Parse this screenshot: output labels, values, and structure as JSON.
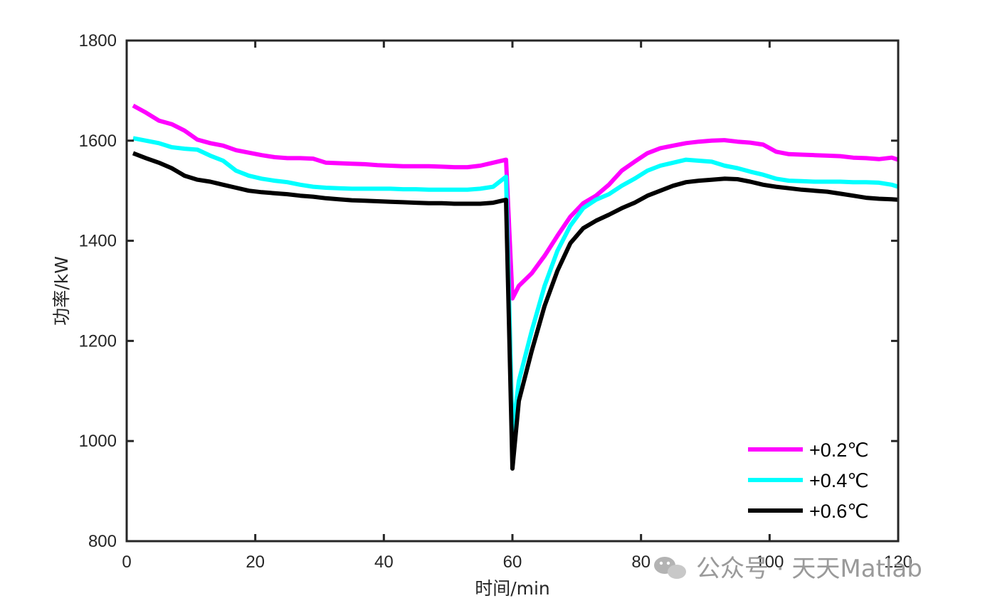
{
  "chart_data": {
    "type": "line",
    "xlabel": "时间/min",
    "ylabel": "功率/kW",
    "xlim": [
      0,
      120
    ],
    "ylim": [
      800,
      1800
    ],
    "xticks": [
      "0",
      "20",
      "40",
      "60",
      "80",
      "100",
      "120"
    ],
    "yticks": [
      "800",
      "1000",
      "1200",
      "1400",
      "1600",
      "1800"
    ],
    "grid": false,
    "legend_position": "bottom-right",
    "series": [
      {
        "name": "+0.2℃",
        "color": "#ff00ff",
        "x": [
          1,
          3,
          5,
          7,
          9,
          11,
          13,
          15,
          17,
          19,
          21,
          23,
          25,
          27,
          29,
          31,
          33,
          35,
          37,
          39,
          41,
          43,
          45,
          47,
          49,
          51,
          53,
          55,
          57,
          59,
          60,
          61,
          63,
          65,
          67,
          69,
          71,
          73,
          75,
          77,
          79,
          81,
          83,
          85,
          87,
          89,
          91,
          93,
          95,
          97,
          99,
          101,
          103,
          105,
          107,
          109,
          111,
          113,
          115,
          117,
          119,
          120
        ],
        "y": [
          1670,
          1656,
          1640,
          1633,
          1620,
          1602,
          1595,
          1590,
          1581,
          1576,
          1571,
          1567,
          1565,
          1565,
          1564,
          1556,
          1555,
          1554,
          1553,
          1551,
          1550,
          1549,
          1549,
          1549,
          1548,
          1547,
          1547,
          1550,
          1556,
          1562,
          1285,
          1310,
          1335,
          1370,
          1410,
          1448,
          1475,
          1490,
          1512,
          1540,
          1558,
          1575,
          1585,
          1590,
          1595,
          1598,
          1600,
          1601,
          1598,
          1596,
          1592,
          1578,
          1573,
          1572,
          1571,
          1570,
          1569,
          1566,
          1565,
          1563,
          1566,
          1562
        ]
      },
      {
        "name": "+0.4℃",
        "color": "#00ffff",
        "x": [
          1,
          3,
          5,
          7,
          9,
          11,
          13,
          15,
          17,
          19,
          21,
          23,
          25,
          27,
          29,
          31,
          33,
          35,
          37,
          39,
          41,
          43,
          45,
          47,
          49,
          51,
          53,
          55,
          57,
          59,
          60,
          61,
          63,
          65,
          67,
          69,
          71,
          73,
          75,
          77,
          79,
          81,
          83,
          85,
          87,
          89,
          91,
          93,
          95,
          97,
          99,
          101,
          103,
          105,
          107,
          109,
          111,
          113,
          115,
          117,
          119,
          120
        ],
        "y": [
          1605,
          1600,
          1595,
          1587,
          1584,
          1582,
          1570,
          1560,
          1540,
          1530,
          1524,
          1520,
          1517,
          1512,
          1508,
          1506,
          1505,
          1504,
          1504,
          1504,
          1504,
          1503,
          1503,
          1502,
          1502,
          1502,
          1502,
          1504,
          1508,
          1528,
          1015,
          1120,
          1220,
          1310,
          1380,
          1430,
          1465,
          1482,
          1493,
          1510,
          1524,
          1540,
          1550,
          1556,
          1562,
          1560,
          1558,
          1550,
          1545,
          1538,
          1532,
          1524,
          1520,
          1519,
          1518,
          1518,
          1518,
          1517,
          1517,
          1516,
          1512,
          1508
        ]
      },
      {
        "name": "+0.6℃",
        "color": "#000000",
        "x": [
          1,
          3,
          5,
          7,
          9,
          11,
          13,
          15,
          17,
          19,
          21,
          23,
          25,
          27,
          29,
          31,
          33,
          35,
          37,
          39,
          41,
          43,
          45,
          47,
          49,
          51,
          53,
          55,
          57,
          59,
          60,
          61,
          63,
          65,
          67,
          69,
          71,
          73,
          75,
          77,
          79,
          81,
          83,
          85,
          87,
          89,
          91,
          93,
          95,
          97,
          99,
          101,
          103,
          105,
          107,
          109,
          111,
          113,
          115,
          117,
          119,
          120
        ],
        "y": [
          1575,
          1565,
          1556,
          1545,
          1530,
          1522,
          1518,
          1512,
          1506,
          1500,
          1497,
          1495,
          1493,
          1490,
          1488,
          1485,
          1483,
          1481,
          1480,
          1479,
          1478,
          1477,
          1476,
          1475,
          1475,
          1474,
          1474,
          1474,
          1476,
          1482,
          945,
          1080,
          1180,
          1270,
          1340,
          1395,
          1425,
          1440,
          1452,
          1465,
          1476,
          1490,
          1500,
          1510,
          1517,
          1520,
          1522,
          1524,
          1523,
          1518,
          1512,
          1508,
          1505,
          1502,
          1500,
          1498,
          1494,
          1490,
          1486,
          1484,
          1483,
          1482
        ]
      }
    ]
  },
  "watermark": {
    "text": "公众号 · 天天Matlab",
    "icon": "wechat-icon"
  }
}
